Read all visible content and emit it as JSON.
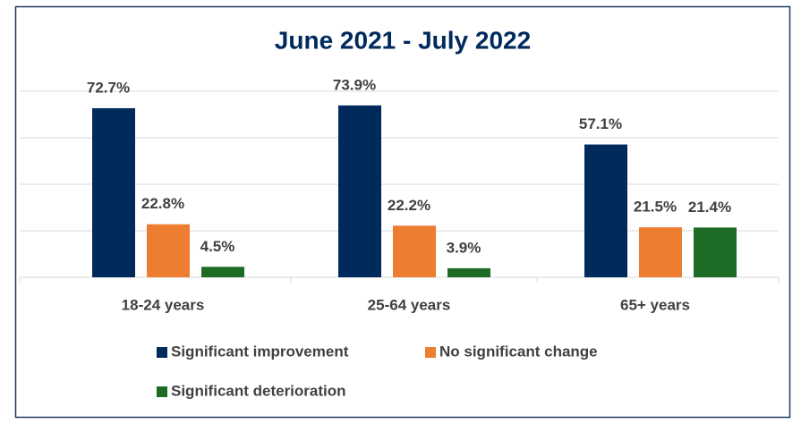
{
  "chart_data": {
    "type": "bar",
    "title": "June 2021 - July 2022",
    "categories": [
      "18-24 years",
      "25-64 years",
      "65+ years"
    ],
    "series": [
      {
        "name": "Significant improvement",
        "color": "#002a5c",
        "values": [
          72.7,
          73.9,
          57.1
        ],
        "value_labels": [
          "72.7%",
          "73.9%",
          "57.1%"
        ]
      },
      {
        "name": "No significant change",
        "color": "#ed7d31",
        "values": [
          22.8,
          22.2,
          21.5
        ],
        "value_labels": [
          "22.8%",
          "22.2%",
          "21.5%"
        ]
      },
      {
        "name": "Significant deterioration",
        "color": "#1e6b25",
        "values": [
          4.5,
          3.9,
          21.4
        ],
        "value_labels": [
          "4.5%",
          "3.9%",
          "21.4%"
        ]
      }
    ],
    "ylim": [
      0,
      80
    ],
    "yticks": [
      0,
      20,
      40,
      60,
      80
    ],
    "grid": true,
    "legend": "bottom"
  }
}
